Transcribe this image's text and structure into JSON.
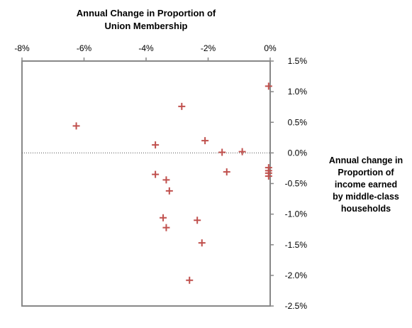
{
  "chart_data": {
    "type": "scatter",
    "title_lines": [
      "Annual Change in Proportion of",
      "Union Membership"
    ],
    "ylabel_lines": [
      "Annual change in",
      "Proportion of",
      "income earned",
      "by middle-class",
      "households"
    ],
    "xlim": [
      -8,
      0
    ],
    "ylim": [
      -2.5,
      1.5
    ],
    "x_ticks": [
      -8,
      -6,
      -4,
      -2,
      0
    ],
    "x_tick_labels": [
      "-8%",
      "-6%",
      "-4%",
      "-2%",
      "0%"
    ],
    "y_ticks": [
      1.5,
      1.0,
      0.5,
      0.0,
      -0.5,
      -1.0,
      -1.5,
      -2.0,
      -2.5
    ],
    "y_tick_labels": [
      "1.5%",
      "1.0%",
      "0.5%",
      "0.0%",
      "-0.5%",
      "-1.0%",
      "-1.5%",
      "-2.0%",
      "-2.5%"
    ],
    "x_axis_position": "top",
    "y_axis_position": "right",
    "zero_reference_line": true,
    "grid": false,
    "marker": "plus",
    "colors": {
      "marker": "#c0504d",
      "axis": "#888888",
      "reference_line": "#555555"
    },
    "points": [
      {
        "x": -6.25,
        "y": 0.44
      },
      {
        "x": -3.7,
        "y": 0.13
      },
      {
        "x": -3.7,
        "y": -0.35
      },
      {
        "x": -3.35,
        "y": -0.44
      },
      {
        "x": -3.25,
        "y": -0.62
      },
      {
        "x": -3.45,
        "y": -1.06
      },
      {
        "x": -3.35,
        "y": -1.22
      },
      {
        "x": -2.85,
        "y": 0.76
      },
      {
        "x": -2.1,
        "y": 0.2
      },
      {
        "x": -2.35,
        "y": -1.1
      },
      {
        "x": -2.2,
        "y": -1.47
      },
      {
        "x": -2.6,
        "y": -2.08
      },
      {
        "x": -1.55,
        "y": 0.01
      },
      {
        "x": -1.4,
        "y": -0.31
      },
      {
        "x": -0.9,
        "y": 0.02
      },
      {
        "x": -0.05,
        "y": 1.09
      },
      {
        "x": -0.05,
        "y": -0.24
      },
      {
        "x": -0.05,
        "y": -0.29
      },
      {
        "x": -0.05,
        "y": -0.33
      },
      {
        "x": -0.05,
        "y": -0.38
      }
    ]
  }
}
